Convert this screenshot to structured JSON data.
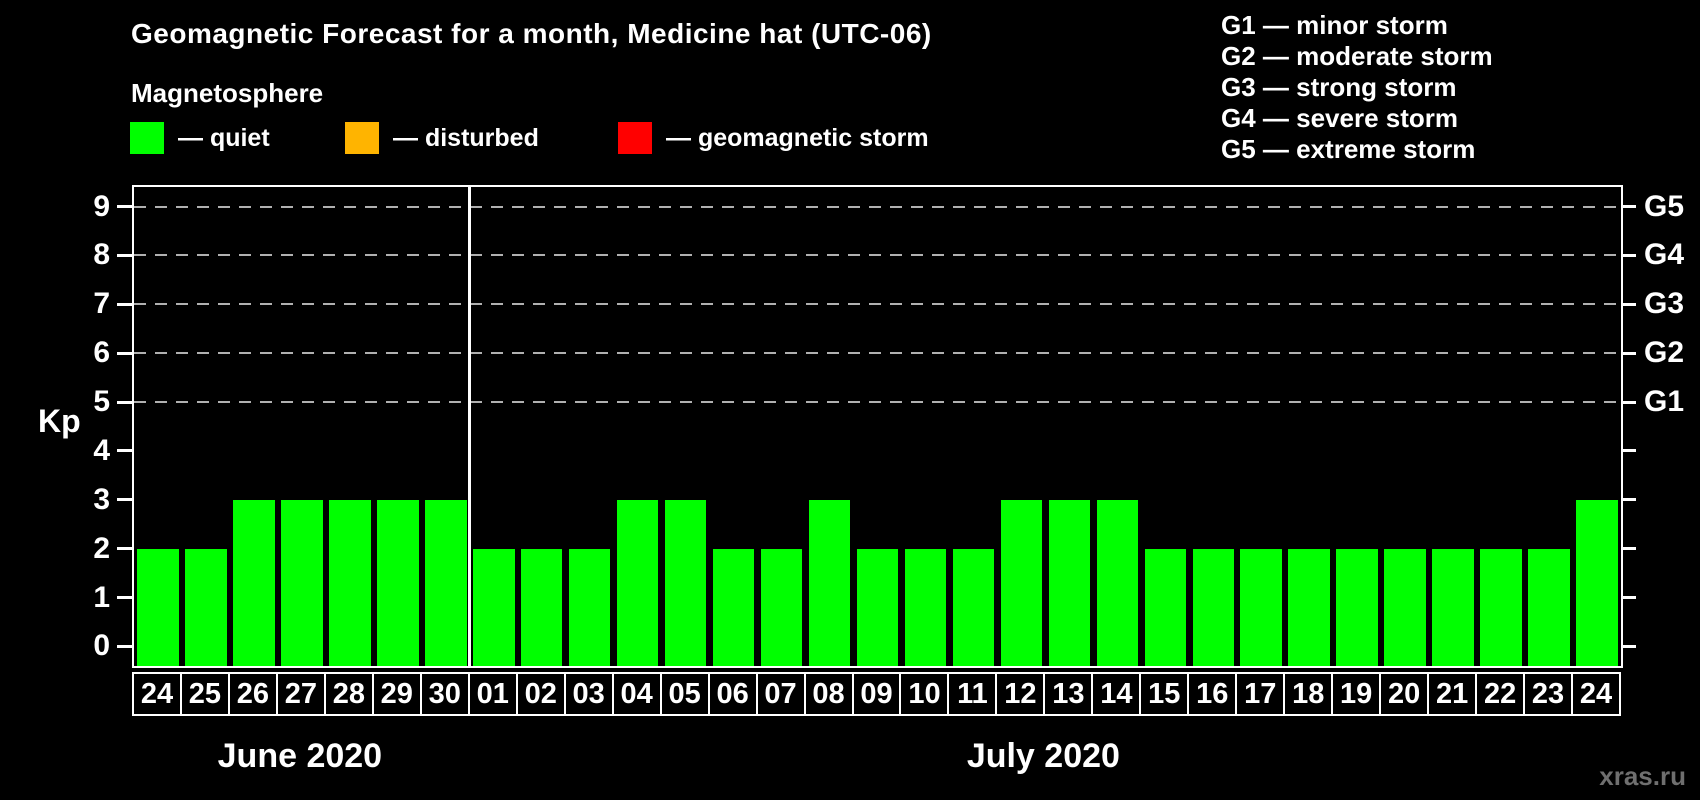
{
  "legend": {
    "title": "Magnetosphere",
    "items": [
      {
        "name": "quiet",
        "label": "— quiet",
        "color": "#00ff00"
      },
      {
        "name": "disturbed",
        "label": "— disturbed",
        "color": "#ffb400"
      },
      {
        "name": "geomagnetic-storm",
        "label": "— geomagnetic storm",
        "color": "#ff0000"
      }
    ]
  },
  "storm_scale": [
    "G1 — minor storm",
    "G2 — moderate storm",
    "G3 — strong storm",
    "G4 — severe storm",
    "G5 — extreme storm"
  ],
  "watermark": "xras.ru",
  "chart_data": {
    "type": "bar",
    "title": "Geomagnetic Forecast for a month, Medicine hat (UTC-06)",
    "ylabel": "Kp",
    "ylim": [
      -0.4,
      9.4
    ],
    "y_ticks": [
      0,
      1,
      2,
      3,
      4,
      5,
      6,
      7,
      8,
      9
    ],
    "gridline_levels": [
      5,
      6,
      7,
      8,
      9
    ],
    "right_axis": [
      {
        "level": 5,
        "label": "G1"
      },
      {
        "level": 6,
        "label": "G2"
      },
      {
        "level": 7,
        "label": "G3"
      },
      {
        "level": 8,
        "label": "G4"
      },
      {
        "level": 9,
        "label": "G5"
      }
    ],
    "grid": "dashed, storm levels only",
    "legend_position": "top-left",
    "bar_color": "#00ff00",
    "bar_status": "quiet",
    "months": [
      {
        "label": "June 2020",
        "days": [
          "24",
          "25",
          "26",
          "27",
          "28",
          "29",
          "30"
        ],
        "values": [
          2,
          2,
          3,
          3,
          3,
          3,
          3
        ]
      },
      {
        "label": "July 2020",
        "days": [
          "01",
          "02",
          "03",
          "04",
          "05",
          "06",
          "07",
          "08",
          "09",
          "10",
          "11",
          "12",
          "13",
          "14",
          "15",
          "16",
          "17",
          "18",
          "19",
          "20",
          "21",
          "22",
          "23",
          "24"
        ],
        "values": [
          2,
          2,
          2,
          3,
          3,
          2,
          2,
          3,
          2,
          2,
          2,
          3,
          3,
          3,
          2,
          2,
          2,
          2,
          2,
          2,
          2,
          2,
          2,
          3
        ]
      }
    ]
  }
}
